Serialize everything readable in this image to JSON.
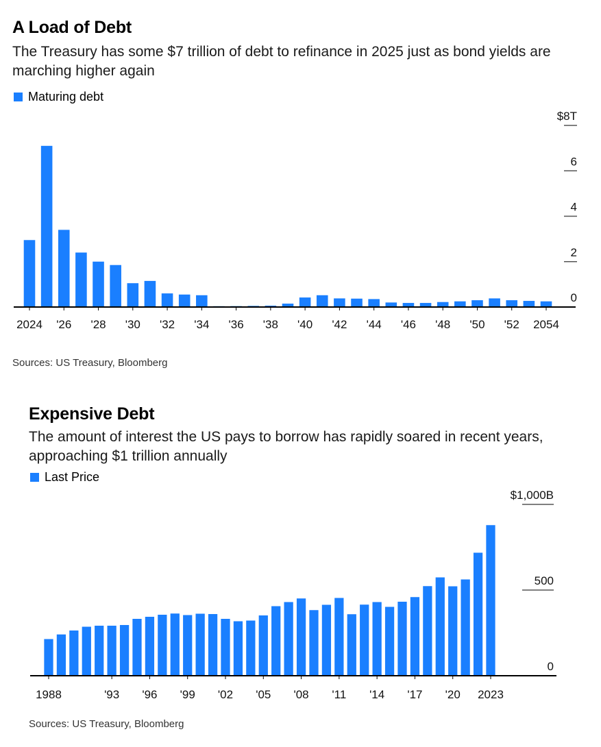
{
  "colors": {
    "bar": "#1a7fff",
    "axis": "#000000",
    "tick": "#555555"
  },
  "chart_data": [
    {
      "type": "bar",
      "title": "A Load of Debt",
      "subtitle": "The Treasury has some $7 trillion of debt to refinance in 2025 just as bond yields are marching higher again",
      "legend": [
        {
          "name": "Maturing debt"
        }
      ],
      "legend_position": "top-left",
      "source": "Sources: US Treasury, Bloomberg",
      "categories": [
        "2024",
        "2025",
        "2026",
        "2027",
        "2028",
        "2029",
        "2030",
        "2031",
        "2032",
        "2033",
        "2034",
        "2035",
        "2036",
        "2037",
        "2038",
        "2039",
        "2040",
        "2041",
        "2042",
        "2043",
        "2044",
        "2045",
        "2046",
        "2047",
        "2048",
        "2049",
        "2050",
        "2051",
        "2052",
        "2053",
        "2054"
      ],
      "values": [
        2.95,
        7.1,
        3.4,
        2.4,
        2.0,
        1.85,
        1.05,
        1.15,
        0.6,
        0.55,
        0.52,
        0.02,
        0.04,
        0.05,
        0.06,
        0.15,
        0.42,
        0.52,
        0.38,
        0.37,
        0.35,
        0.2,
        0.18,
        0.18,
        0.22,
        0.25,
        0.3,
        0.38,
        0.3,
        0.27,
        0.25
      ],
      "x_tick_labels": [
        {
          "index": 0,
          "label": "2024"
        },
        {
          "index": 2,
          "label": "'26"
        },
        {
          "index": 4,
          "label": "'28"
        },
        {
          "index": 6,
          "label": "'30"
        },
        {
          "index": 8,
          "label": "'32"
        },
        {
          "index": 10,
          "label": "'34"
        },
        {
          "index": 12,
          "label": "'36"
        },
        {
          "index": 14,
          "label": "'38"
        },
        {
          "index": 16,
          "label": "'40"
        },
        {
          "index": 18,
          "label": "'42"
        },
        {
          "index": 20,
          "label": "'44"
        },
        {
          "index": 22,
          "label": "'46"
        },
        {
          "index": 24,
          "label": "'48"
        },
        {
          "index": 26,
          "label": "'50"
        },
        {
          "index": 28,
          "label": "'52"
        },
        {
          "index": 30,
          "label": "2054"
        }
      ],
      "y_ticks": [
        {
          "value": 8,
          "label": "$8T"
        },
        {
          "value": 6,
          "label": "6"
        },
        {
          "value": 4,
          "label": "4"
        },
        {
          "value": 2,
          "label": "2"
        },
        {
          "value": 0,
          "label": "0"
        }
      ],
      "ylim": [
        0,
        8
      ],
      "xlabel": "",
      "ylabel": "",
      "grid": false
    },
    {
      "type": "bar",
      "title": "Expensive Debt",
      "subtitle": "The amount of interest the US pays to borrow has rapidly soared in recent years, approaching $1 trillion annually",
      "legend": [
        {
          "name": "Last Price"
        }
      ],
      "legend_position": "top-left",
      "source": "Sources: US Treasury, Bloomberg",
      "categories": [
        "1988",
        "1989",
        "1990",
        "1991",
        "1992",
        "1993",
        "1994",
        "1995",
        "1996",
        "1997",
        "1998",
        "1999",
        "2000",
        "2001",
        "2002",
        "2003",
        "2004",
        "2005",
        "2006",
        "2007",
        "2008",
        "2009",
        "2010",
        "2011",
        "2012",
        "2013",
        "2014",
        "2015",
        "2016",
        "2017",
        "2018",
        "2019",
        "2020",
        "2021",
        "2022",
        "2023"
      ],
      "values": [
        214,
        241,
        264,
        286,
        292,
        292,
        296,
        332,
        344,
        356,
        363,
        354,
        362,
        360,
        332,
        318,
        322,
        352,
        406,
        430,
        451,
        383,
        414,
        454,
        359,
        415,
        430,
        402,
        432,
        459,
        523,
        574,
        522,
        562,
        718,
        879
      ],
      "x_tick_labels": [
        {
          "index": 0,
          "label": "1988"
        },
        {
          "index": 5,
          "label": "'93"
        },
        {
          "index": 8,
          "label": "'96"
        },
        {
          "index": 11,
          "label": "'99"
        },
        {
          "index": 14,
          "label": "'02"
        },
        {
          "index": 17,
          "label": "'05"
        },
        {
          "index": 20,
          "label": "'08"
        },
        {
          "index": 23,
          "label": "'11"
        },
        {
          "index": 26,
          "label": "'14"
        },
        {
          "index": 29,
          "label": "'17"
        },
        {
          "index": 32,
          "label": "'20"
        },
        {
          "index": 35,
          "label": "2023"
        }
      ],
      "y_ticks": [
        {
          "value": 1000,
          "label": "$1,000B"
        },
        {
          "value": 500,
          "label": "500"
        },
        {
          "value": 0,
          "label": "0"
        }
      ],
      "ylim": [
        0,
        1000
      ],
      "xlabel": "",
      "ylabel": "",
      "grid": false
    }
  ]
}
